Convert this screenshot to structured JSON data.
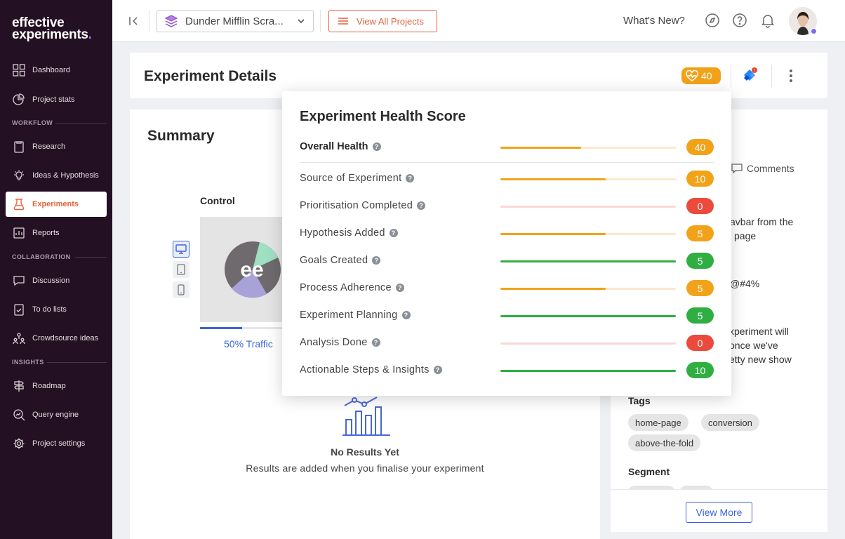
{
  "colors": {
    "accent": "#e8613a",
    "blue": "#3d63d8",
    "orange": "#f2a219",
    "red": "#eb4a3c",
    "green": "#2fae41"
  },
  "sidebar": {
    "logo_line1": "effective",
    "logo_line2": "experiments",
    "logo_dot": ".",
    "sections": {
      "workflow": "WORKFLOW",
      "collaboration": "COLLABORATION",
      "insights": "INSIGHTS"
    },
    "items": {
      "dashboard": "Dashboard",
      "project_stats": "Project stats",
      "research": "Research",
      "ideas": "Ideas & Hypothesis",
      "experiments": "Experiments",
      "reports": "Reports",
      "discussion": "Discussion",
      "todo": "To do lists",
      "crowdsource": "Crowdsource ideas",
      "roadmap": "Roadmap",
      "query_engine": "Query engine",
      "project_settings": "Project settings"
    }
  },
  "topbar": {
    "project_name": "Dunder Mifflin Scra...",
    "view_all_label": "View All Projects",
    "whats_new": "What's New?"
  },
  "details": {
    "title": "Experiment Details",
    "health_score": "40"
  },
  "summary": {
    "title": "Summary",
    "control_label": "Control",
    "traffic_label": "50% Traffic",
    "traffic_fraction": 0.5,
    "preview_logo": "ee",
    "no_results_title": "No Results Yet",
    "no_results_sub": "Results are added when you finalise your experiment"
  },
  "right_panel": {
    "comments_tab": "Comments",
    "text1_line1": "avbar from the",
    "text1_line2": "page",
    "text2": "@#4%",
    "text3_line1": "xperiment will",
    "text3_line2": "once we've",
    "text3_line3": "etty new show",
    "tags_heading": "Tags",
    "tags": [
      "home-page",
      "conversion",
      "above-the-fold"
    ],
    "segment_heading": "Segment",
    "view_more": "View More"
  },
  "health_popover": {
    "title": "Experiment Health Score",
    "overall": {
      "label": "Overall Health",
      "score": "40",
      "fraction": 0.46,
      "color": "orange"
    },
    "rows": [
      {
        "label": "Source of Experiment",
        "score": "10",
        "fraction": 0.6,
        "color": "orange"
      },
      {
        "label": "Prioritisation Completed",
        "score": "0",
        "fraction": 0,
        "color": "red"
      },
      {
        "label": "Hypothesis Added",
        "score": "5",
        "fraction": 0.6,
        "color": "orange"
      },
      {
        "label": "Goals Created",
        "score": "5",
        "fraction": 1.0,
        "color": "green"
      },
      {
        "label": "Process Adherence",
        "score": "5",
        "fraction": 0.6,
        "color": "orange"
      },
      {
        "label": "Experiment Planning",
        "score": "5",
        "fraction": 1.0,
        "color": "green"
      },
      {
        "label": "Analysis Done",
        "score": "0",
        "fraction": 0,
        "color": "red"
      },
      {
        "label": "Actionable Steps & Insights",
        "score": "10",
        "fraction": 1.0,
        "color": "green"
      }
    ]
  }
}
